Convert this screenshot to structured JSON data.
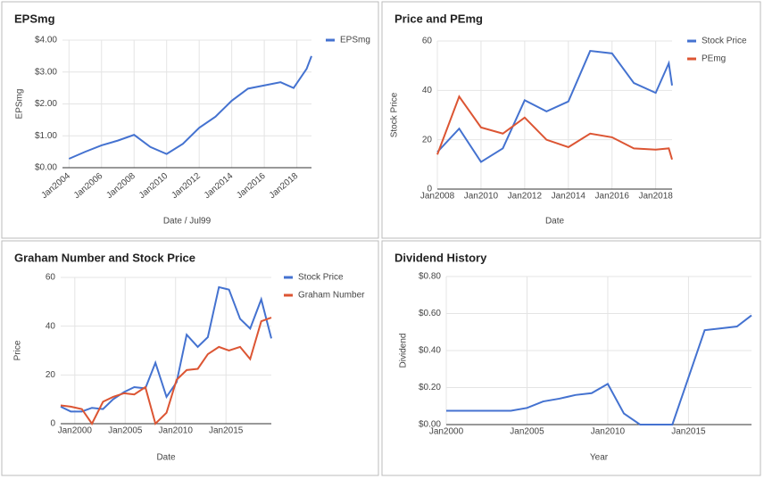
{
  "chart_data": [
    {
      "type": "line",
      "title": "EPSmg",
      "x_label": "Date / Jul99",
      "y_label": "EPSmg",
      "grid": true,
      "legend": "right",
      "xlim": [
        2003.6,
        2018.9
      ],
      "ylim": [
        0,
        4
      ],
      "xticks": [
        {
          "value": 2004,
          "label": "Jan2004"
        },
        {
          "value": 2006,
          "label": "Jan2006"
        },
        {
          "value": 2008,
          "label": "Jan2008"
        },
        {
          "value": 2010,
          "label": "Jan2010"
        },
        {
          "value": 2012,
          "label": "Jan2012"
        },
        {
          "value": 2014,
          "label": "Jan2014"
        },
        {
          "value": 2016,
          "label": "Jan2016"
        },
        {
          "value": 2018,
          "label": "Jan2018"
        }
      ],
      "yticks": [
        {
          "value": 0,
          "label": "$0.00"
        },
        {
          "value": 1,
          "label": "$1.00"
        },
        {
          "value": 2,
          "label": "$2.00"
        },
        {
          "value": 3,
          "label": "$3.00"
        },
        {
          "value": 4,
          "label": "$4.00"
        }
      ],
      "x": [
        2004,
        2005,
        2006,
        2007,
        2008,
        2009,
        2010,
        2011,
        2012,
        2013,
        2014,
        2015,
        2016,
        2017,
        2017.8,
        2018.6,
        2018.9
      ],
      "series": [
        {
          "name": "EPSmg",
          "color": "#4472d0",
          "values": [
            0.28,
            0.5,
            0.7,
            0.85,
            1.03,
            0.65,
            0.43,
            0.75,
            1.25,
            1.6,
            2.1,
            2.48,
            2.58,
            2.68,
            2.5,
            3.1,
            3.5
          ]
        }
      ]
    },
    {
      "type": "line",
      "title": "Price and PEmg",
      "x_label": "Date",
      "y_label": "Stock Price",
      "grid": true,
      "legend": "right",
      "xlim": [
        2008,
        2018.75
      ],
      "ylim": [
        0,
        60
      ],
      "xticks": [
        {
          "value": 2008,
          "label": "Jan2008"
        },
        {
          "value": 2010,
          "label": "Jan2010"
        },
        {
          "value": 2012,
          "label": "Jan2012"
        },
        {
          "value": 2014,
          "label": "Jan2014"
        },
        {
          "value": 2016,
          "label": "Jan2016"
        },
        {
          "value": 2018,
          "label": "Jan2018"
        }
      ],
      "yticks": [
        0,
        20,
        40,
        60
      ],
      "x": [
        2008,
        2009,
        2010,
        2011,
        2012,
        2013,
        2014,
        2015,
        2016,
        2017,
        2018,
        2018.6,
        2018.75
      ],
      "series": [
        {
          "name": "Stock Price",
          "color": "#4472d0",
          "values": [
            15,
            24.5,
            11,
            16.5,
            36,
            31.5,
            35.5,
            56,
            55,
            43,
            39,
            51,
            42
          ]
        },
        {
          "name": "PEmg",
          "color": "#dc5533",
          "values": [
            14,
            37.5,
            25,
            22.5,
            29,
            20,
            17,
            22.5,
            21,
            16.5,
            16,
            16.5,
            12
          ]
        }
      ]
    },
    {
      "type": "line",
      "title": "Graham Number and Stock Price",
      "x_label": "Date",
      "y_label": "Price",
      "grid": true,
      "legend": "right",
      "xlim": [
        1998.6,
        2019.5
      ],
      "ylim": [
        0,
        60
      ],
      "xticks": [
        {
          "value": 2000,
          "label": "Jan2000"
        },
        {
          "value": 2005,
          "label": "Jan2005"
        },
        {
          "value": 2010,
          "label": "Jan2010"
        },
        {
          "value": 2015,
          "label": "Jan2015"
        }
      ],
      "yticks": [
        0,
        20,
        40,
        60
      ],
      "x": [
        1998.6,
        1999.6,
        2000.7,
        2001.7,
        2002.8,
        2003.8,
        2004.9,
        2005.9,
        2007.0,
        2008.0,
        2009.1,
        2010.1,
        2011.1,
        2012.2,
        2013.2,
        2014.3,
        2015.3,
        2016.4,
        2017.4,
        2018.5,
        2019.5
      ],
      "series": [
        {
          "name": "Stock Price",
          "color": "#4472d0",
          "values": [
            7,
            5,
            5,
            6.5,
            6,
            10,
            13,
            15,
            14.5,
            25,
            11,
            17,
            36.5,
            31.5,
            35.5,
            56,
            55,
            43,
            39,
            51,
            35
          ]
        },
        {
          "name": "Graham Number",
          "color": "#dc5533",
          "values": [
            7.5,
            7,
            6,
            0,
            9,
            11,
            12.5,
            12,
            15,
            0,
            4.5,
            18,
            22,
            22.5,
            28.5,
            31.5,
            30,
            31.5,
            26.5,
            42,
            43.5
          ]
        }
      ]
    },
    {
      "type": "line",
      "title": "Dividend History",
      "x_label": "Year",
      "y_label": "Dividend",
      "grid": true,
      "xlim": [
        2000,
        2018.9
      ],
      "ylim": [
        0,
        0.8
      ],
      "xticks": [
        {
          "value": 2000,
          "label": "Jan2000"
        },
        {
          "value": 2005,
          "label": "Jan2005"
        },
        {
          "value": 2010,
          "label": "Jan2010"
        },
        {
          "value": 2015,
          "label": "Jan2015"
        }
      ],
      "yticks": [
        {
          "value": 0,
          "label": "$0.00"
        },
        {
          "value": 0.2,
          "label": "$0.20"
        },
        {
          "value": 0.4,
          "label": "$0.40"
        },
        {
          "value": 0.6,
          "label": "$0.60"
        },
        {
          "value": 0.8,
          "label": "$0.80"
        }
      ],
      "x": [
        2000,
        2001,
        2002,
        2003,
        2004,
        2005,
        2006,
        2007,
        2008,
        2009,
        2010,
        2011,
        2012,
        2013,
        2014,
        2016,
        2017,
        2018,
        2018.9
      ],
      "series": [
        {
          "name": "Dividend",
          "color": "#4472d0",
          "values": [
            0.075,
            0.075,
            0.075,
            0.075,
            0.075,
            0.09,
            0.125,
            0.14,
            0.16,
            0.17,
            0.22,
            0.06,
            0,
            0,
            0,
            0.51,
            0.52,
            0.53,
            0.59
          ]
        }
      ]
    }
  ]
}
